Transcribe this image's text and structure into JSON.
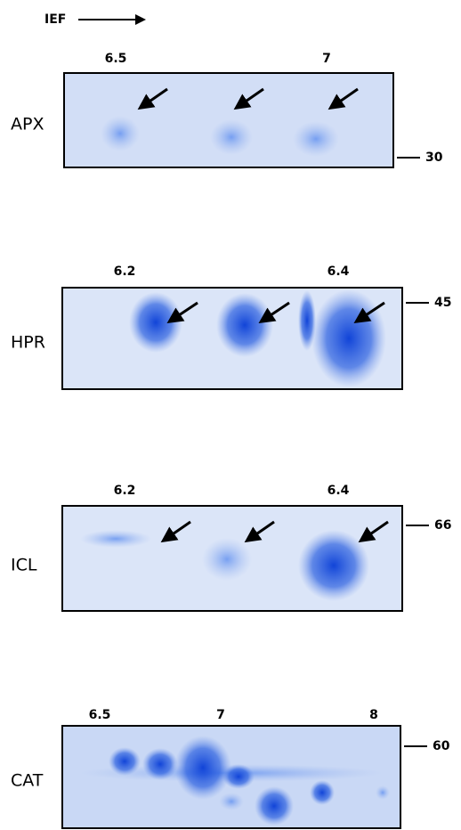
{
  "header": {
    "direction_label": "IEF"
  },
  "panels": [
    {
      "label": "APX",
      "pi_labels": [
        "6.5",
        "7"
      ],
      "mw_marker": "30"
    },
    {
      "label": "HPR",
      "pi_labels": [
        "6.2",
        "6.4"
      ],
      "mw_marker": "45"
    },
    {
      "label": "ICL",
      "pi_labels": [
        "6.2",
        "6.4"
      ],
      "mw_marker": "66"
    },
    {
      "label": "CAT",
      "pi_labels": [
        "6.5",
        "7",
        "8"
      ],
      "mw_marker": "60"
    }
  ]
}
